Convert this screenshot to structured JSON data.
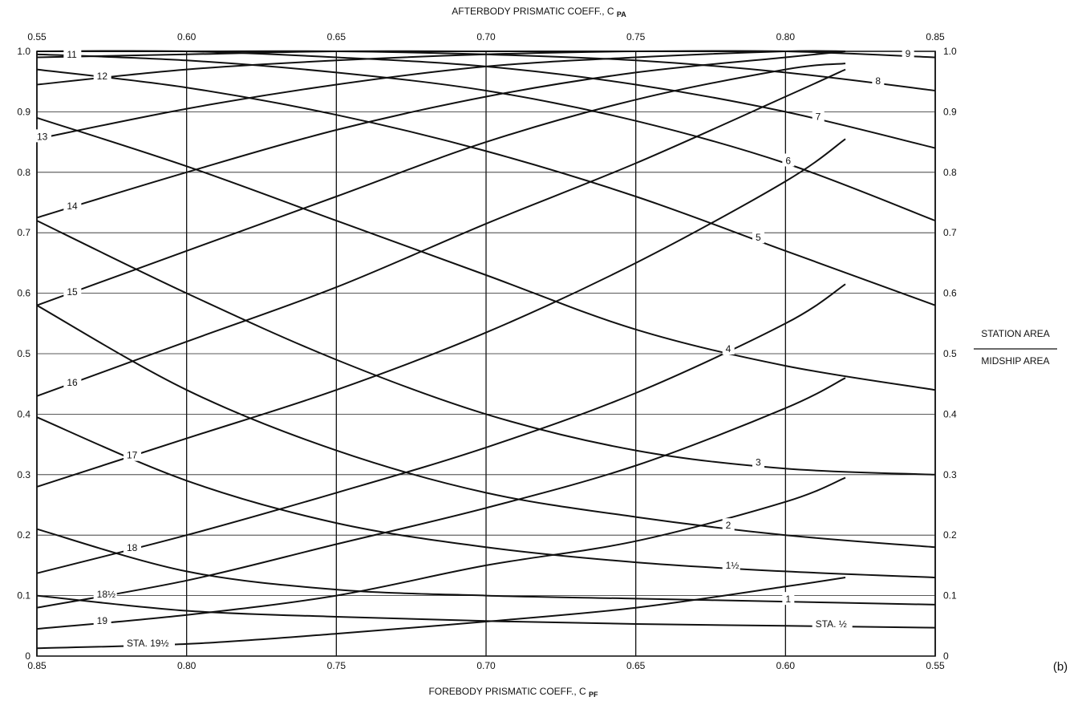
{
  "chart_data": {
    "type": "line",
    "title": "",
    "top_axis_label_main": "AFTERBODY PRISMATIC COEFF., C",
    "top_axis_label_sub": "PA",
    "bottom_axis_label_main": "FOREBODY PRISMATIC COEFF., C",
    "bottom_axis_label_sub": "PF",
    "ylabel_numerator": "STATION AREA",
    "ylabel_denominator": "MIDSHIP AREA",
    "panel_label": "(b)",
    "top_axis_range": [
      0.55,
      0.85
    ],
    "bottom_axis_range": [
      0.85,
      0.55
    ],
    "ylim": [
      0,
      1.0
    ],
    "grid": true,
    "top_tick_labels": [
      "0.55",
      "0.60",
      "0.65",
      "0.70",
      "0.75",
      "0.80",
      "0.85"
    ],
    "bottom_tick_labels": [
      "0.85",
      "0.80",
      "0.75",
      "0.70",
      "0.65",
      "0.60",
      "0.55"
    ],
    "left_tick_labels": [
      "0",
      "0.1",
      "0.2",
      "0.3",
      "0.4",
      "0.5",
      "0.6",
      "0.7",
      "0.8",
      "0.9",
      "1.0"
    ],
    "right_tick_labels": [
      "0",
      "0.1",
      "0.2",
      "0.3",
      "0.4",
      "0.5",
      "0.6",
      "0.7",
      "0.8",
      "0.9",
      "1.0"
    ],
    "afterbody_series": [
      {
        "name": "9",
        "x": [
          0.55,
          0.6,
          0.65,
          0.7,
          0.75,
          0.8,
          0.85
        ],
        "y": [
          1.0,
          1.0,
          1.0,
          1.0,
          1.0,
          1.0,
          0.99
        ]
      },
      {
        "name": "8",
        "x": [
          0.55,
          0.6,
          0.65,
          0.7,
          0.75,
          0.8,
          0.85
        ],
        "y": [
          1.0,
          1.0,
          1.0,
          0.995,
          0.985,
          0.965,
          0.935
        ]
      },
      {
        "name": "7",
        "x": [
          0.55,
          0.6,
          0.65,
          0.7,
          0.75,
          0.8,
          0.85
        ],
        "y": [
          1.0,
          1.0,
          0.99,
          0.975,
          0.945,
          0.9,
          0.84
        ]
      },
      {
        "name": "6",
        "x": [
          0.55,
          0.6,
          0.65,
          0.7,
          0.75,
          0.8,
          0.85
        ],
        "y": [
          0.995,
          0.985,
          0.965,
          0.935,
          0.885,
          0.815,
          0.72
        ]
      },
      {
        "name": "5",
        "x": [
          0.55,
          0.6,
          0.65,
          0.7,
          0.75,
          0.8,
          0.85
        ],
        "y": [
          0.97,
          0.94,
          0.895,
          0.835,
          0.76,
          0.67,
          0.58
        ]
      },
      {
        "name": "4",
        "x": [
          0.55,
          0.6,
          0.65,
          0.7,
          0.75,
          0.8,
          0.85
        ],
        "y": [
          0.89,
          0.81,
          0.72,
          0.63,
          0.54,
          0.48,
          0.44
        ]
      },
      {
        "name": "3",
        "x": [
          0.55,
          0.6,
          0.65,
          0.7,
          0.75,
          0.8,
          0.85
        ],
        "y": [
          0.72,
          0.6,
          0.49,
          0.4,
          0.34,
          0.31,
          0.3
        ]
      },
      {
        "name": "2",
        "x": [
          0.55,
          0.6,
          0.65,
          0.7,
          0.75,
          0.8,
          0.85
        ],
        "y": [
          0.58,
          0.44,
          0.34,
          0.27,
          0.23,
          0.2,
          0.18
        ]
      },
      {
        "name": "1½",
        "x": [
          0.55,
          0.6,
          0.65,
          0.7,
          0.75,
          0.8,
          0.85
        ],
        "y": [
          0.395,
          0.29,
          0.22,
          0.18,
          0.155,
          0.14,
          0.13
        ]
      },
      {
        "name": "1",
        "x": [
          0.55,
          0.6,
          0.65,
          0.7,
          0.75,
          0.8,
          0.85
        ],
        "y": [
          0.21,
          0.14,
          0.11,
          0.1,
          0.095,
          0.09,
          0.085
        ]
      },
      {
        "name": "STA. ½",
        "x": [
          0.55,
          0.6,
          0.65,
          0.7,
          0.75,
          0.8,
          0.85
        ],
        "y": [
          0.1,
          0.075,
          0.065,
          0.058,
          0.053,
          0.05,
          0.047
        ]
      }
    ],
    "forebody_series": [
      {
        "name": "11",
        "x": [
          0.85,
          0.8,
          0.75,
          0.7,
          0.65,
          0.6,
          0.58
        ],
        "y": [
          0.99,
          0.995,
          1.0,
          1.0,
          1.0,
          1.0,
          1.0
        ]
      },
      {
        "name": "12",
        "x": [
          0.85,
          0.8,
          0.75,
          0.7,
          0.65,
          0.6,
          0.58
        ],
        "y": [
          0.945,
          0.97,
          0.985,
          0.995,
          1.0,
          1.0,
          1.0
        ]
      },
      {
        "name": "13",
        "x": [
          0.85,
          0.8,
          0.75,
          0.7,
          0.65,
          0.6,
          0.58
        ],
        "y": [
          0.855,
          0.905,
          0.945,
          0.975,
          0.99,
          1.0,
          1.0
        ]
      },
      {
        "name": "14",
        "x": [
          0.85,
          0.8,
          0.75,
          0.7,
          0.65,
          0.6,
          0.58
        ],
        "y": [
          0.725,
          0.8,
          0.87,
          0.925,
          0.965,
          0.99,
          1.0
        ]
      },
      {
        "name": "15",
        "x": [
          0.85,
          0.8,
          0.75,
          0.7,
          0.65,
          0.6,
          0.58
        ],
        "y": [
          0.58,
          0.67,
          0.76,
          0.85,
          0.92,
          0.97,
          0.98
        ]
      },
      {
        "name": "16",
        "x": [
          0.85,
          0.8,
          0.75,
          0.7,
          0.65,
          0.6,
          0.58
        ],
        "y": [
          0.43,
          0.52,
          0.61,
          0.715,
          0.815,
          0.925,
          0.97
        ]
      },
      {
        "name": "17",
        "x": [
          0.85,
          0.8,
          0.75,
          0.7,
          0.65,
          0.6,
          0.58
        ],
        "y": [
          0.28,
          0.36,
          0.44,
          0.535,
          0.65,
          0.785,
          0.855
        ]
      },
      {
        "name": "18",
        "x": [
          0.85,
          0.8,
          0.75,
          0.7,
          0.65,
          0.6,
          0.58
        ],
        "y": [
          0.137,
          0.2,
          0.27,
          0.345,
          0.435,
          0.55,
          0.615
        ]
      },
      {
        "name": "18½",
        "x": [
          0.85,
          0.8,
          0.75,
          0.7,
          0.65,
          0.6,
          0.58
        ],
        "y": [
          0.08,
          0.125,
          0.185,
          0.245,
          0.315,
          0.41,
          0.46
        ]
      },
      {
        "name": "19",
        "x": [
          0.85,
          0.8,
          0.75,
          0.7,
          0.65,
          0.6,
          0.58
        ],
        "y": [
          0.045,
          0.068,
          0.1,
          0.15,
          0.19,
          0.255,
          0.295
        ]
      },
      {
        "name": "STA. 19½",
        "x": [
          0.85,
          0.8,
          0.75,
          0.7,
          0.65,
          0.6,
          0.58
        ],
        "y": [
          0.013,
          0.02,
          0.037,
          0.057,
          0.08,
          0.115,
          0.13
        ]
      }
    ],
    "curve_labels": [
      {
        "text": "9",
        "anchor_series": "9",
        "anchor_x": 0.84
      },
      {
        "text": "8",
        "anchor_series": "8",
        "anchor_x": 0.83
      },
      {
        "text": "7",
        "anchor_series": "7",
        "anchor_x": 0.81
      },
      {
        "text": "6",
        "anchor_series": "6",
        "anchor_x": 0.8
      },
      {
        "text": "5",
        "anchor_series": "5",
        "anchor_x": 0.79
      },
      {
        "text": "4",
        "anchor_series": "4",
        "anchor_x": 0.78
      },
      {
        "text": "3",
        "anchor_series": "3",
        "anchor_x": 0.79
      },
      {
        "text": "2",
        "anchor_series": "2",
        "anchor_x": 0.78
      },
      {
        "text": "1½",
        "anchor_series": "1½",
        "anchor_x": 0.78
      },
      {
        "text": "1",
        "anchor_series": "1",
        "anchor_x": 0.8
      },
      {
        "text": "STA. ½",
        "anchor_series": "STA. ½",
        "anchor_x": 0.81
      },
      {
        "text": "11",
        "anchor_series": "11",
        "anchor_x": 0.84
      },
      {
        "text": "12",
        "anchor_series": "12",
        "anchor_x": 0.83
      },
      {
        "text": "13",
        "anchor_series": "13",
        "anchor_x": 0.85
      },
      {
        "text": "14",
        "anchor_series": "14",
        "anchor_x": 0.84
      },
      {
        "text": "15",
        "anchor_series": "15",
        "anchor_x": 0.84
      },
      {
        "text": "16",
        "anchor_series": "16",
        "anchor_x": 0.84
      },
      {
        "text": "17",
        "anchor_series": "17",
        "anchor_x": 0.82
      },
      {
        "text": "18",
        "anchor_series": "18",
        "anchor_x": 0.82
      },
      {
        "text": "18½",
        "anchor_series": "18½",
        "anchor_x": 0.83
      },
      {
        "text": "19",
        "anchor_series": "19",
        "anchor_x": 0.83
      },
      {
        "text": "STA. 19½",
        "anchor_series": "STA. 19½",
        "anchor_x": 0.82
      }
    ]
  }
}
